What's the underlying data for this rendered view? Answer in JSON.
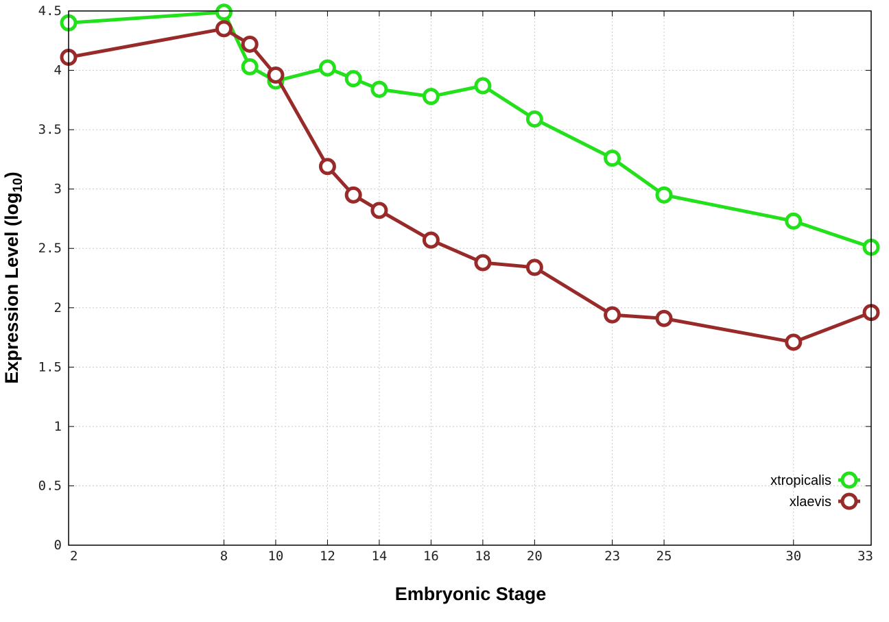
{
  "chart_data": {
    "type": "line",
    "title": "",
    "xlabel": "Embryonic Stage",
    "ylabel_main": "Expression Level (log",
    "ylabel_sub": "10",
    "ylabel_close": ")",
    "xlim": [
      2,
      33
    ],
    "ylim": [
      0,
      4.5
    ],
    "x_ticks": [
      2,
      8,
      10,
      12,
      14,
      16,
      18,
      20,
      23,
      25,
      30,
      33
    ],
    "y_ticks": [
      0,
      0.5,
      1,
      1.5,
      2,
      2.5,
      3,
      3.5,
      4,
      4.5
    ],
    "y_tick_labels": [
      "0",
      "0.5",
      "1",
      "1.5",
      "2",
      "2.5",
      "3",
      "3.5",
      "4",
      "4.5"
    ],
    "grid": true,
    "legend_position": "bottom-right",
    "x": [
      2,
      8,
      9,
      10,
      12,
      13,
      14,
      16,
      18,
      20,
      23,
      25,
      30,
      33
    ],
    "series": [
      {
        "name": "xtropicalis",
        "color": "#22e01a",
        "values": [
          4.4,
          4.49,
          4.03,
          3.91,
          4.02,
          3.93,
          3.84,
          3.78,
          3.87,
          3.59,
          3.26,
          2.95,
          2.73,
          2.51
        ]
      },
      {
        "name": "xlaevis",
        "color": "#992a2a",
        "values": [
          4.11,
          4.35,
          4.22,
          3.96,
          3.19,
          2.95,
          2.82,
          2.57,
          2.38,
          2.34,
          1.94,
          1.91,
          1.71,
          1.96
        ]
      }
    ]
  }
}
